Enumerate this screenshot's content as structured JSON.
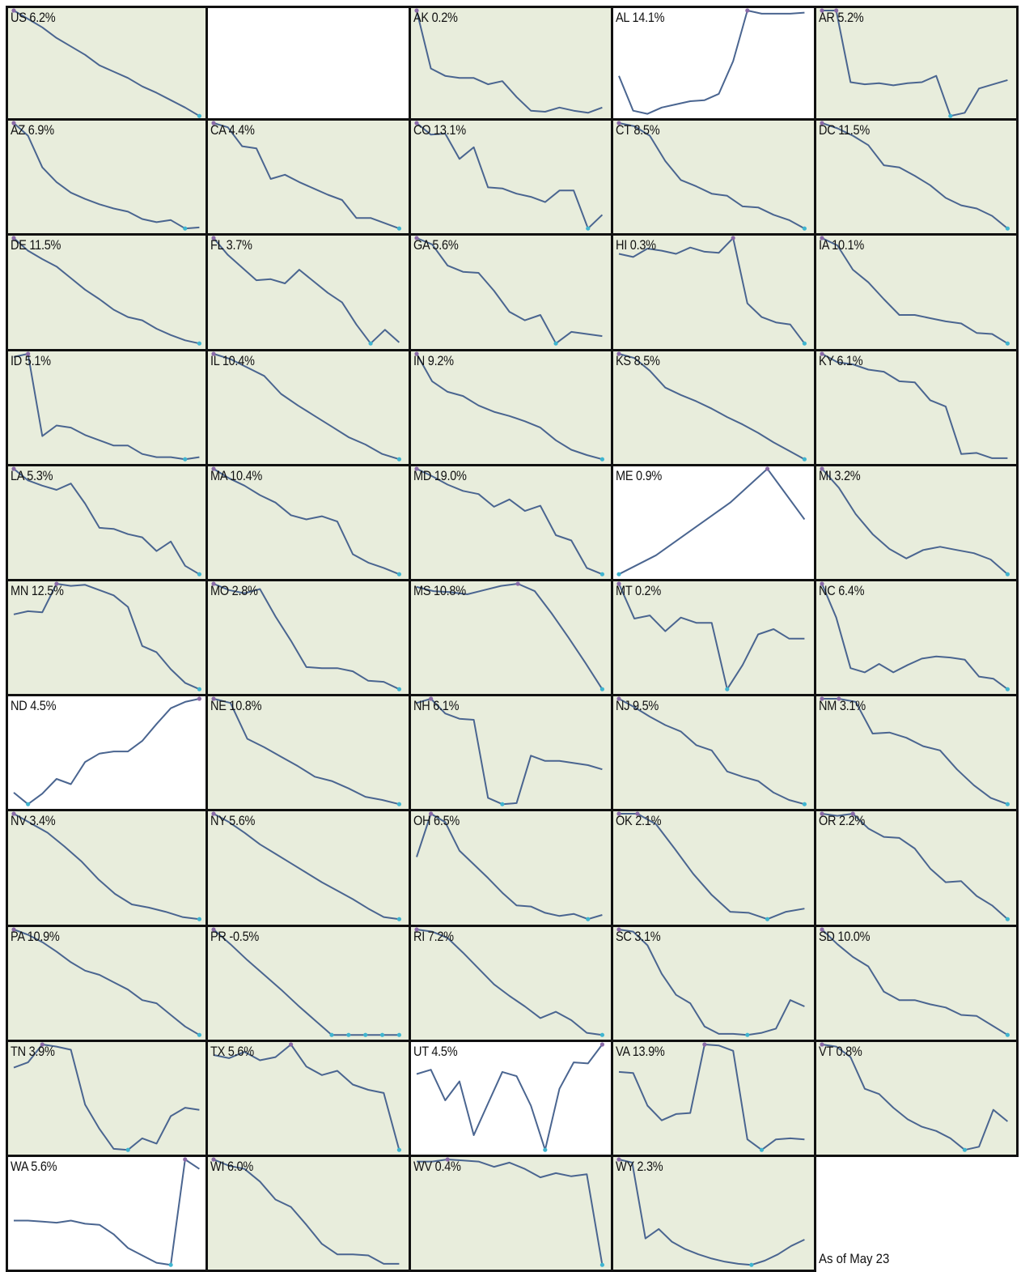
{
  "footnote": "As of May 23",
  "colors": {
    "panel_bg": "#e8eddc",
    "panel_bg_rising": "#ffffff",
    "line": "#4a6590",
    "low_marker": "#3fb5d0",
    "high_marker": "#8a6aa8",
    "border": "#111111"
  },
  "chart_data": {
    "type": "line",
    "layout": "small-multiples grid, 5 columns",
    "note": "values are relative levels read from each sparkline (max = 1, min = 0)",
    "panels": [
      {
        "code": "US",
        "label": "US 6.2%",
        "bg": "green",
        "values": [
          1,
          0.92,
          0.84,
          0.74,
          0.66,
          0.58,
          0.48,
          0.42,
          0.36,
          0.28,
          0.22,
          0.15,
          0.08,
          0
        ]
      },
      {
        "code": "",
        "label": "",
        "bg": "empty",
        "values": []
      },
      {
        "code": "AK",
        "label": "AK 0.2%",
        "bg": "green",
        "values": [
          1,
          0.45,
          0.38,
          0.36,
          0.36,
          0.3,
          0.33,
          0.18,
          0.05,
          0.04,
          0.08,
          0.05,
          0.03,
          0.08
        ]
      },
      {
        "code": "AL",
        "label": "AL 14.1%",
        "bg": "white",
        "values": [
          0.38,
          0.05,
          0.02,
          0.08,
          0.11,
          0.14,
          0.15,
          0.21,
          0.52,
          1,
          0.97,
          0.97,
          0.97,
          0.98
        ]
      },
      {
        "code": "AR",
        "label": "AR 5.2%",
        "bg": "green",
        "values": [
          1,
          1,
          0.32,
          0.3,
          0.31,
          0.29,
          0.31,
          0.32,
          0.38,
          0,
          0.03,
          0.26,
          0.3,
          0.34
        ]
      },
      {
        "code": "AZ",
        "label": "AZ 6.9%",
        "bg": "green",
        "values": [
          1,
          0.88,
          0.58,
          0.44,
          0.34,
          0.28,
          0.23,
          0.19,
          0.16,
          0.09,
          0.06,
          0.08,
          0,
          0.01
        ]
      },
      {
        "code": "CA",
        "label": "CA 4.4%",
        "bg": "green",
        "values": [
          1,
          0.96,
          0.78,
          0.76,
          0.47,
          0.51,
          0.44,
          0.38,
          0.32,
          0.27,
          0.1,
          0.1,
          0.05,
          0
        ]
      },
      {
        "code": "CO",
        "label": "CO 13.1%",
        "bg": "green",
        "values": [
          1,
          0.89,
          0.9,
          0.66,
          0.77,
          0.39,
          0.38,
          0.33,
          0.3,
          0.25,
          0.36,
          0.36,
          0,
          0.13
        ]
      },
      {
        "code": "CT",
        "label": "CT 8.5%",
        "bg": "green",
        "values": [
          1,
          0.97,
          0.88,
          0.64,
          0.46,
          0.4,
          0.33,
          0.31,
          0.21,
          0.2,
          0.13,
          0.08,
          0
        ]
      },
      {
        "code": "DC",
        "label": "DC 11.5%",
        "bg": "green",
        "values": [
          1,
          0.95,
          0.88,
          0.79,
          0.6,
          0.58,
          0.5,
          0.41,
          0.29,
          0.22,
          0.19,
          0.12,
          0
        ]
      },
      {
        "code": "DE",
        "label": "DE 11.5%",
        "bg": "green",
        "values": [
          1,
          0.88,
          0.8,
          0.73,
          0.62,
          0.51,
          0.42,
          0.32,
          0.25,
          0.22,
          0.14,
          0.08,
          0.03,
          0
        ]
      },
      {
        "code": "FL",
        "label": "FL 3.7%",
        "bg": "green",
        "values": [
          1,
          0.84,
          0.72,
          0.6,
          0.61,
          0.57,
          0.7,
          0.59,
          0.48,
          0.39,
          0.18,
          0,
          0.13,
          0.01
        ]
      },
      {
        "code": "GA",
        "label": "GA 5.6%",
        "bg": "green",
        "values": [
          1,
          0.94,
          0.74,
          0.68,
          0.67,
          0.5,
          0.3,
          0.22,
          0.27,
          0,
          0.11,
          0.09,
          0.07
        ]
      },
      {
        "code": "HI",
        "label": "HI 0.3%",
        "bg": "green",
        "values": [
          0.85,
          0.82,
          0.9,
          0.88,
          0.85,
          0.91,
          0.87,
          0.86,
          1,
          0.38,
          0.25,
          0.2,
          0.18,
          0
        ]
      },
      {
        "code": "IA",
        "label": "IA 10.1%",
        "bg": "green",
        "values": [
          1,
          0.93,
          0.7,
          0.58,
          0.42,
          0.27,
          0.27,
          0.24,
          0.21,
          0.19,
          0.1,
          0.09,
          0
        ]
      },
      {
        "code": "ID",
        "label": "ID 5.1%",
        "bg": "green",
        "values": [
          0.97,
          1,
          0.22,
          0.32,
          0.3,
          0.23,
          0.18,
          0.13,
          0.13,
          0.05,
          0.02,
          0.02,
          0,
          0.02
        ]
      },
      {
        "code": "IL",
        "label": "IL 10.4%",
        "bg": "green",
        "values": [
          1,
          0.95,
          0.87,
          0.79,
          0.62,
          0.51,
          0.41,
          0.31,
          0.21,
          0.14,
          0.05,
          0
        ]
      },
      {
        "code": "IN",
        "label": "IN 9.2%",
        "bg": "green",
        "values": [
          1,
          0.74,
          0.64,
          0.6,
          0.51,
          0.45,
          0.41,
          0.36,
          0.3,
          0.18,
          0.09,
          0.04,
          0
        ]
      },
      {
        "code": "KS",
        "label": "KS 8.5%",
        "bg": "green",
        "values": [
          1,
          0.96,
          0.84,
          0.68,
          0.61,
          0.55,
          0.48,
          0.4,
          0.33,
          0.25,
          0.16,
          0.08,
          0
        ]
      },
      {
        "code": "KY",
        "label": "KY 6.1%",
        "bg": "green",
        "values": [
          1,
          0.92,
          0.9,
          0.85,
          0.83,
          0.74,
          0.73,
          0.56,
          0.5,
          0.05,
          0.06,
          0.01,
          0.01
        ]
      },
      {
        "code": "LA",
        "label": "LA 5.3%",
        "bg": "green",
        "values": [
          1,
          0.89,
          0.84,
          0.8,
          0.86,
          0.67,
          0.44,
          0.43,
          0.38,
          0.35,
          0.22,
          0.31,
          0.08,
          0
        ]
      },
      {
        "code": "MA",
        "label": "MA 10.4%",
        "bg": "green",
        "values": [
          1,
          0.91,
          0.84,
          0.75,
          0.68,
          0.56,
          0.52,
          0.55,
          0.5,
          0.19,
          0.11,
          0.06,
          0
        ]
      },
      {
        "code": "MD",
        "label": "MD 19.0%",
        "bg": "green",
        "values": [
          1,
          0.93,
          0.85,
          0.79,
          0.76,
          0.64,
          0.71,
          0.6,
          0.65,
          0.37,
          0.32,
          0.06,
          0
        ]
      },
      {
        "code": "ME",
        "label": "ME 0.9%",
        "bg": "white",
        "values": [
          0,
          0.18,
          0.43,
          0.68,
          1,
          0.52
        ]
      },
      {
        "code": "MI",
        "label": "MI 3.2%",
        "bg": "green",
        "values": [
          1,
          0.82,
          0.57,
          0.38,
          0.24,
          0.15,
          0.23,
          0.26,
          0.23,
          0.2,
          0.14,
          0
        ]
      },
      {
        "code": "MN",
        "label": "MN 12.5%",
        "bg": "green",
        "values": [
          0.71,
          0.74,
          0.73,
          1,
          0.98,
          0.99,
          0.94,
          0.89,
          0.78,
          0.41,
          0.35,
          0.19,
          0.06,
          0
        ]
      },
      {
        "code": "MO",
        "label": "MO 2.8%",
        "bg": "green",
        "values": [
          1,
          0.94,
          0.91,
          0.95,
          0.69,
          0.46,
          0.21,
          0.2,
          0.2,
          0.17,
          0.08,
          0.07,
          0
        ]
      },
      {
        "code": "MS",
        "label": "MS 10.8%",
        "bg": "green",
        "values": [
          0.97,
          0.93,
          0.92,
          0.9,
          0.94,
          0.98,
          1,
          0.93,
          0.72,
          0.49,
          0.25,
          0
        ]
      },
      {
        "code": "MT",
        "label": "MT 0.2%",
        "bg": "green",
        "values": [
          1,
          0.67,
          0.7,
          0.55,
          0.68,
          0.63,
          0.63,
          0,
          0.23,
          0.52,
          0.57,
          0.48,
          0.48
        ]
      },
      {
        "code": "NC",
        "label": "NC 6.4%",
        "bg": "green",
        "values": [
          1,
          0.68,
          0.2,
          0.16,
          0.24,
          0.16,
          0.23,
          0.29,
          0.31,
          0.3,
          0.28,
          0.12,
          0.1,
          0
        ]
      },
      {
        "code": "ND",
        "label": "ND 4.5%",
        "bg": "white",
        "values": [
          0.11,
          0,
          0.1,
          0.24,
          0.19,
          0.4,
          0.48,
          0.5,
          0.5,
          0.6,
          0.76,
          0.91,
          0.97,
          1
        ]
      },
      {
        "code": "NE",
        "label": "NE 10.8%",
        "bg": "green",
        "values": [
          1,
          0.96,
          0.62,
          0.54,
          0.45,
          0.36,
          0.26,
          0.22,
          0.15,
          0.07,
          0.04,
          0
        ]
      },
      {
        "code": "NH",
        "label": "NH 6.1%",
        "bg": "green",
        "values": [
          0.96,
          1,
          0.86,
          0.81,
          0.8,
          0.06,
          0,
          0.01,
          0.46,
          0.41,
          0.41,
          0.39,
          0.37,
          0.33
        ]
      },
      {
        "code": "NJ",
        "label": "NJ 9.5%",
        "bg": "green",
        "values": [
          1,
          0.92,
          0.83,
          0.75,
          0.69,
          0.56,
          0.51,
          0.31,
          0.26,
          0.22,
          0.11,
          0.04,
          0
        ]
      },
      {
        "code": "NM",
        "label": "NM 3.1%",
        "bg": "green",
        "values": [
          1,
          1,
          0.97,
          0.67,
          0.68,
          0.63,
          0.55,
          0.51,
          0.33,
          0.18,
          0.06,
          0
        ]
      },
      {
        "code": "NV",
        "label": "NV 3.4%",
        "bg": "green",
        "values": [
          1,
          0.91,
          0.82,
          0.69,
          0.55,
          0.38,
          0.24,
          0.14,
          0.11,
          0.07,
          0.02,
          0
        ]
      },
      {
        "code": "NY",
        "label": "NY 5.6%",
        "bg": "green",
        "values": [
          1,
          0.92,
          0.82,
          0.71,
          0.62,
          0.53,
          0.44,
          0.35,
          0.27,
          0.19,
          0.1,
          0.02,
          0
        ]
      },
      {
        "code": "OH",
        "label": "OH 6.5%",
        "bg": "green",
        "values": [
          0.59,
          1,
          0.92,
          0.65,
          0.52,
          0.39,
          0.25,
          0.13,
          0.12,
          0.06,
          0.03,
          0.05,
          0,
          0.04
        ]
      },
      {
        "code": "OK",
        "label": "OK 2.1%",
        "bg": "green",
        "values": [
          1,
          1,
          0.9,
          0.67,
          0.43,
          0.23,
          0.07,
          0.06,
          0,
          0.07,
          0.1
        ]
      },
      {
        "code": "OR",
        "label": "OR 2.2%",
        "bg": "green",
        "values": [
          1,
          0.98,
          1,
          0.86,
          0.78,
          0.77,
          0.67,
          0.48,
          0.35,
          0.36,
          0.22,
          0.13,
          0
        ]
      },
      {
        "code": "PA",
        "label": "PA 10.9%",
        "bg": "green",
        "values": [
          1,
          0.95,
          0.88,
          0.79,
          0.69,
          0.61,
          0.57,
          0.5,
          0.43,
          0.33,
          0.3,
          0.19,
          0.08,
          0
        ]
      },
      {
        "code": "PR",
        "label": "PR -0.5%",
        "bg": "green",
        "values": [
          1,
          0.86,
          0.71,
          0.57,
          0.43,
          0.28,
          0.14,
          0,
          0,
          0,
          0,
          0
        ]
      },
      {
        "code": "RI",
        "label": "RI 7.2%",
        "bg": "green",
        "values": [
          1,
          0.98,
          0.92,
          0.78,
          0.63,
          0.48,
          0.37,
          0.27,
          0.16,
          0.22,
          0.14,
          0.02,
          0
        ]
      },
      {
        "code": "SC",
        "label": "SC 3.1%",
        "bg": "green",
        "values": [
          1,
          0.98,
          0.85,
          0.58,
          0.38,
          0.3,
          0.08,
          0.01,
          0.01,
          0,
          0.02,
          0.06,
          0.33,
          0.27
        ]
      },
      {
        "code": "SD",
        "label": "SD 10.0%",
        "bg": "green",
        "values": [
          1,
          0.86,
          0.74,
          0.65,
          0.41,
          0.33,
          0.33,
          0.29,
          0.26,
          0.19,
          0.18,
          0.09,
          0
        ]
      },
      {
        "code": "TN",
        "label": "TN 3.9%",
        "bg": "green",
        "values": [
          0.78,
          0.83,
          1,
          0.98,
          0.95,
          0.43,
          0.2,
          0.01,
          0,
          0.11,
          0.06,
          0.32,
          0.4,
          0.38
        ]
      },
      {
        "code": "TX",
        "label": "TX 5.6%",
        "bg": "green",
        "values": [
          0.9,
          0.87,
          0.93,
          0.85,
          0.88,
          1,
          0.79,
          0.71,
          0.75,
          0.62,
          0.57,
          0.54,
          0
        ]
      },
      {
        "code": "UT",
        "label": "UT 4.5%",
        "bg": "white",
        "values": [
          0.72,
          0.76,
          0.47,
          0.65,
          0.14,
          0.44,
          0.74,
          0.7,
          0.42,
          0,
          0.58,
          0.83,
          0.82,
          1
        ]
      },
      {
        "code": "VA",
        "label": "VA 13.9%",
        "bg": "green",
        "values": [
          0.74,
          0.73,
          0.42,
          0.28,
          0.34,
          0.35,
          1,
          0.99,
          0.94,
          0.1,
          0,
          0.1,
          0.11,
          0.1
        ]
      },
      {
        "code": "VT",
        "label": "VT 0.8%",
        "bg": "green",
        "values": [
          1,
          0.98,
          0.88,
          0.58,
          0.53,
          0.4,
          0.29,
          0.22,
          0.18,
          0.11,
          0,
          0.03,
          0.38,
          0.27
        ]
      },
      {
        "code": "WA",
        "label": "WA 5.6%",
        "bg": "white",
        "values": [
          0.42,
          0.42,
          0.41,
          0.4,
          0.42,
          0.39,
          0.38,
          0.29,
          0.16,
          0.09,
          0.02,
          0,
          1,
          0.91
        ]
      },
      {
        "code": "WI",
        "label": "WI 6.0%",
        "bg": "green",
        "values": [
          1,
          0.94,
          0.91,
          0.79,
          0.62,
          0.55,
          0.38,
          0.2,
          0.1,
          0.1,
          0.09,
          0.01,
          0.01
        ]
      },
      {
        "code": "WV",
        "label": "WV 0.4%",
        "bg": "green",
        "values": [
          0.98,
          0.98,
          1,
          0.99,
          0.98,
          0.93,
          0.97,
          0.91,
          0.83,
          0.87,
          0.84,
          0.86,
          0
        ]
      },
      {
        "code": "WY",
        "label": "WY 2.3%",
        "bg": "green",
        "values": [
          1,
          0.97,
          0.25,
          0.34,
          0.22,
          0.15,
          0.1,
          0.06,
          0.03,
          0.01,
          0,
          0.04,
          0.1,
          0.18,
          0.24
        ]
      }
    ]
  }
}
